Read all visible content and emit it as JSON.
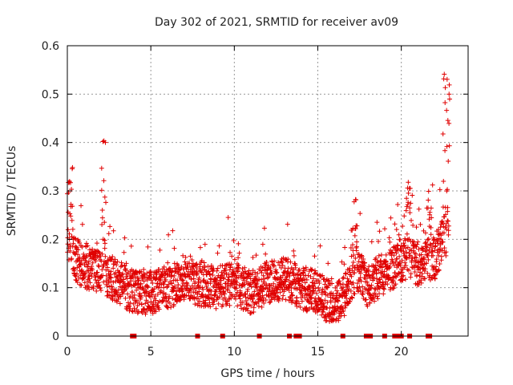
{
  "chart_data": {
    "type": "scatter",
    "title": "Day 302 of 2021, SRMTID for receiver av09",
    "xlabel": "GPS time / hours",
    "ylabel": "SRMTID / TECUs",
    "xlim": [
      0,
      24
    ],
    "ylim": [
      0,
      0.6
    ],
    "x_ticks": [
      0,
      5,
      10,
      15,
      20
    ],
    "x_tick_labels": [
      "0",
      "5",
      "10",
      "15",
      "20"
    ],
    "y_ticks": [
      0,
      0.1,
      0.2,
      0.3,
      0.4,
      0.5,
      0.6
    ],
    "y_tick_labels": [
      "0",
      "0.1",
      "0.2",
      "0.3",
      "0.4",
      "0.5",
      "0.6"
    ],
    "grid": true,
    "marker": "plus",
    "marker_color": "#e00000",
    "sampling_interval_hours": 0.01,
    "baseline_profile": [
      {
        "x": 0.0,
        "y": 0.18
      },
      {
        "x": 0.5,
        "y": 0.16
      },
      {
        "x": 1.0,
        "y": 0.14
      },
      {
        "x": 2.0,
        "y": 0.13
      },
      {
        "x": 3.0,
        "y": 0.115
      },
      {
        "x": 4.0,
        "y": 0.09
      },
      {
        "x": 5.0,
        "y": 0.09
      },
      {
        "x": 6.0,
        "y": 0.1
      },
      {
        "x": 7.0,
        "y": 0.12
      },
      {
        "x": 8.0,
        "y": 0.105
      },
      {
        "x": 9.0,
        "y": 0.1
      },
      {
        "x": 10.0,
        "y": 0.11
      },
      {
        "x": 11.0,
        "y": 0.09
      },
      {
        "x": 12.0,
        "y": 0.11
      },
      {
        "x": 13.0,
        "y": 0.12
      },
      {
        "x": 14.0,
        "y": 0.1
      },
      {
        "x": 15.0,
        "y": 0.09
      },
      {
        "x": 16.0,
        "y": 0.06
      },
      {
        "x": 16.5,
        "y": 0.08
      },
      {
        "x": 17.0,
        "y": 0.12
      },
      {
        "x": 17.5,
        "y": 0.14
      },
      {
        "x": 18.0,
        "y": 0.1
      },
      {
        "x": 18.5,
        "y": 0.12
      },
      {
        "x": 19.0,
        "y": 0.13
      },
      {
        "x": 19.5,
        "y": 0.14
      },
      {
        "x": 20.0,
        "y": 0.16
      },
      {
        "x": 21.0,
        "y": 0.15
      },
      {
        "x": 22.0,
        "y": 0.16
      },
      {
        "x": 22.5,
        "y": 0.2
      },
      {
        "x": 22.9,
        "y": 0.22
      }
    ],
    "spikes": [
      {
        "x": 0.0,
        "x_end": 0.35,
        "peak": 0.35
      },
      {
        "x": 2.05,
        "x_end": 2.3,
        "peak": 0.42
      },
      {
        "x": 17.0,
        "x_end": 17.35,
        "peak": 0.29
      },
      {
        "x": 20.3,
        "x_end": 20.7,
        "peak": 0.33
      },
      {
        "x": 21.6,
        "x_end": 21.9,
        "peak": 0.32
      },
      {
        "x": 22.5,
        "x_end": 22.9,
        "peak": 0.55
      }
    ],
    "data_gaps_x": [
      3.9,
      4.0,
      7.8,
      9.3,
      11.5,
      13.3,
      13.7,
      13.9,
      16.5,
      17.9,
      18.0,
      18.15,
      19.0,
      19.6,
      19.8,
      20.0,
      20.5,
      21.6,
      21.7
    ],
    "data_end_x": 22.9
  }
}
